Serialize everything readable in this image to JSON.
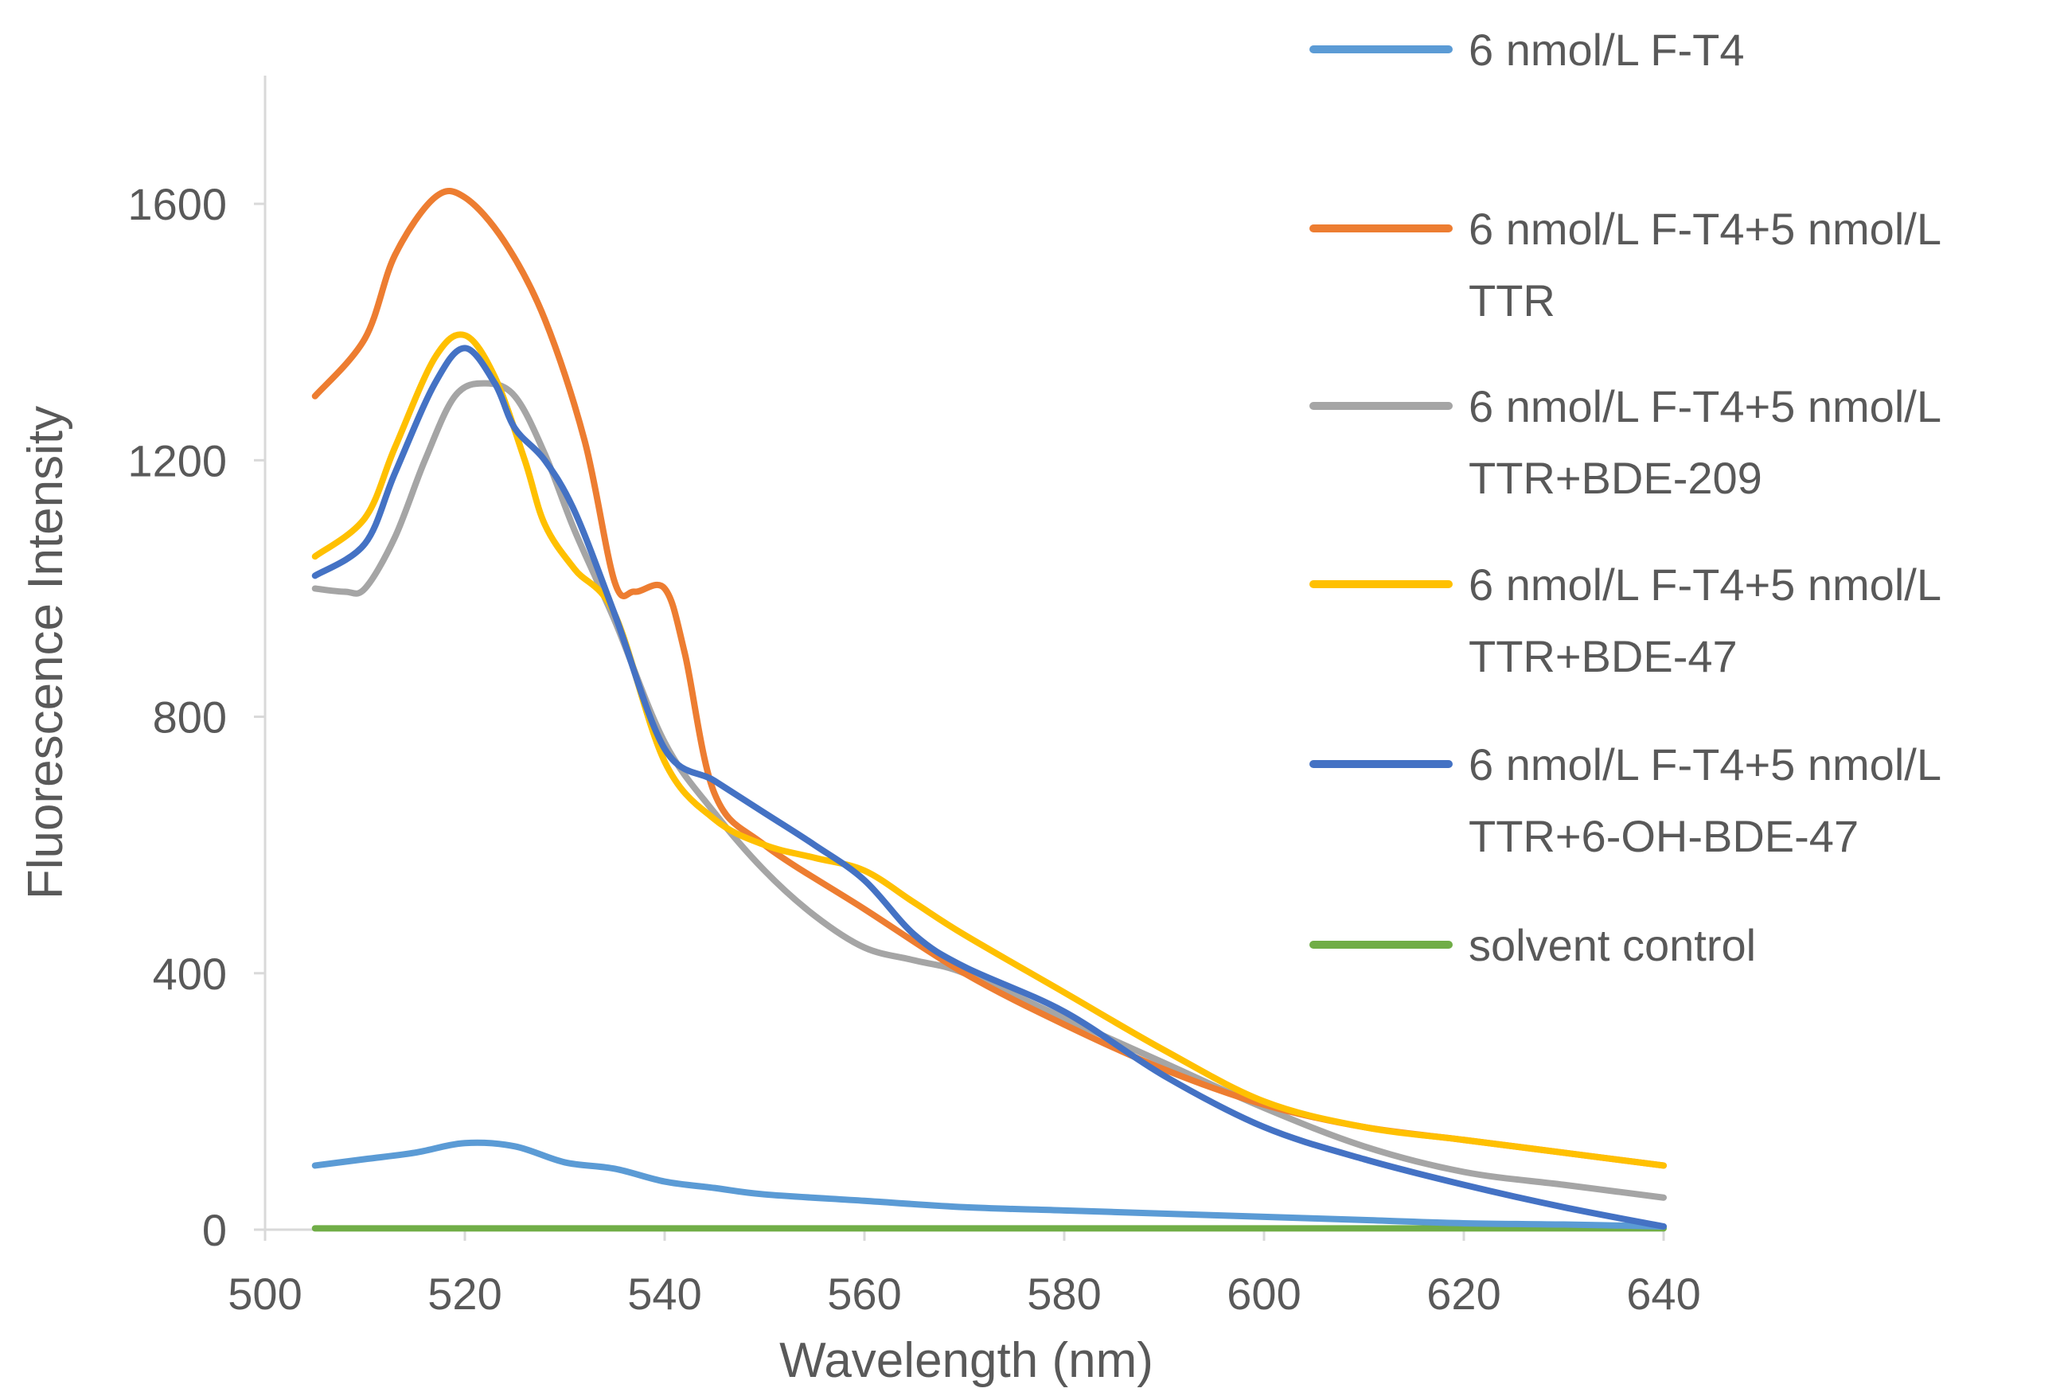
{
  "chart_data": {
    "type": "line",
    "title": "",
    "xlabel": "Wavelength (nm)",
    "ylabel": "Fluorescence Intensity",
    "xlim": [
      500,
      640
    ],
    "ylim": [
      0,
      1800
    ],
    "xticks": [
      500,
      520,
      540,
      560,
      580,
      600,
      620,
      640
    ],
    "yticks": [
      0,
      400,
      800,
      1200,
      1600
    ],
    "grid": false,
    "legend_position": "right",
    "series": [
      {
        "name": "6 nmol/L F-T4",
        "legend_lines": [
          "6 nmol/L F-T4"
        ],
        "color": "#5b9bd5",
        "x": [
          505,
          510,
          515,
          520,
          525,
          530,
          535,
          540,
          545,
          550,
          560,
          570,
          580,
          590,
          600,
          610,
          620,
          630,
          640
        ],
        "y": [
          100,
          110,
          120,
          135,
          130,
          105,
          95,
          75,
          65,
          55,
          45,
          35,
          30,
          25,
          20,
          15,
          10,
          8,
          5
        ]
      },
      {
        "name": "6 nmol/L F-T4+5 nmol/L TTR",
        "legend_lines": [
          "6 nmol/L F-T4+5 nmol/L",
          "TTR"
        ],
        "color": "#ed7d31",
        "x": [
          505,
          510,
          513,
          517,
          520,
          524,
          528,
          532,
          535,
          537,
          540,
          542,
          545,
          550,
          560,
          570,
          580,
          590,
          600,
          610,
          620,
          630,
          640
        ],
        "y": [
          1300,
          1390,
          1520,
          1610,
          1610,
          1540,
          1420,
          1230,
          1010,
          995,
          1000,
          900,
          680,
          600,
          500,
          400,
          320,
          250,
          195,
          160,
          140,
          120,
          100
        ]
      },
      {
        "name": "6 nmol/L F-T4+5 nmol/L TTR+BDE-209",
        "legend_lines": [
          "6 nmol/L F-T4+5 nmol/L",
          "TTR+BDE-209"
        ],
        "color": "#a5a5a5",
        "x": [
          505,
          508,
          510,
          513,
          516,
          519,
          522,
          525,
          528,
          531,
          535,
          540,
          545,
          550,
          555,
          560,
          565,
          570,
          580,
          590,
          600,
          610,
          620,
          630,
          640
        ],
        "y": [
          1000,
          995,
          1000,
          1080,
          1200,
          1300,
          1320,
          1300,
          1210,
          1090,
          950,
          760,
          650,
          560,
          490,
          440,
          420,
          400,
          330,
          260,
          190,
          130,
          90,
          70,
          50
        ]
      },
      {
        "name": "6 nmol/L F-T4+5 nmol/L TTR+BDE-47",
        "legend_lines": [
          "6 nmol/L F-T4+5 nmol/L",
          "TTR+BDE-47"
        ],
        "color": "#ffc000",
        "x": [
          505,
          510,
          513,
          517,
          520,
          523,
          526,
          528,
          531,
          535,
          540,
          545,
          550,
          555,
          560,
          565,
          570,
          580,
          590,
          600,
          610,
          620,
          630,
          640
        ],
        "y": [
          1050,
          1110,
          1220,
          1360,
          1395,
          1330,
          1200,
          1100,
          1030,
          960,
          730,
          640,
          600,
          580,
          560,
          510,
          460,
          370,
          280,
          200,
          160,
          140,
          120,
          100
        ]
      },
      {
        "name": "6 nmol/L F-T4+5 nmol/L TTR+6-OH-BDE-47",
        "legend_lines": [
          "6 nmol/L F-T4+5 nmol/L",
          "TTR+6-OH-BDE-47"
        ],
        "color": "#4472c4",
        "x": [
          505,
          510,
          513,
          517,
          520,
          523,
          525,
          528,
          531,
          535,
          540,
          545,
          550,
          555,
          560,
          565,
          570,
          580,
          590,
          600,
          610,
          620,
          630,
          640
        ],
        "y": [
          1020,
          1070,
          1180,
          1320,
          1375,
          1320,
          1250,
          1200,
          1120,
          960,
          750,
          700,
          650,
          600,
          545,
          460,
          410,
          340,
          240,
          160,
          110,
          70,
          35,
          5
        ]
      },
      {
        "name": "solvent control",
        "legend_lines": [
          "solvent control"
        ],
        "color": "#70ad47",
        "x": [
          505,
          640
        ],
        "y": [
          2,
          2
        ]
      }
    ]
  }
}
